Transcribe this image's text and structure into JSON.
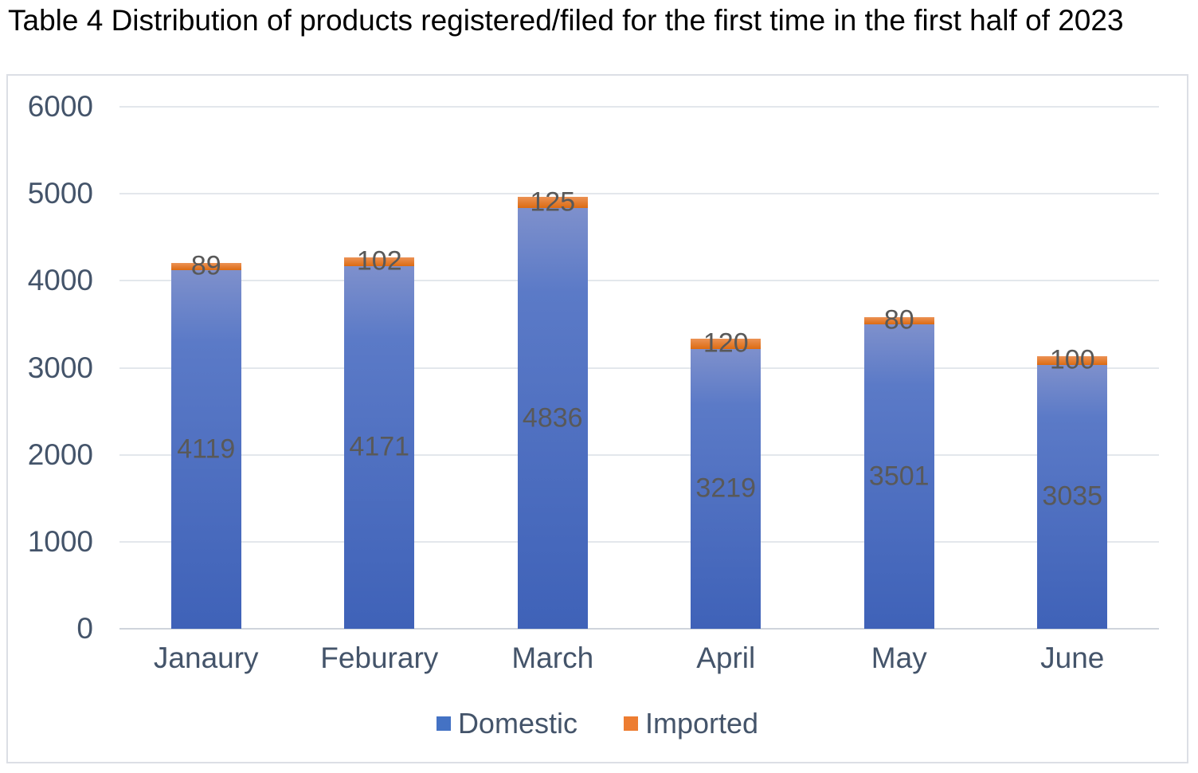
{
  "chart_data": {
    "type": "bar",
    "stacked": true,
    "title": "Table 4 Distribution of products registered/filed for the first time in the first half of 2023",
    "categories": [
      "Janaury",
      "Feburary",
      "March",
      "April",
      "May",
      "June"
    ],
    "series": [
      {
        "name": "Domestic",
        "color": "#4472C4",
        "values": [
          4119,
          4171,
          4836,
          3219,
          3501,
          3035
        ]
      },
      {
        "name": "Imported",
        "color": "#ED7D31",
        "values": [
          89,
          102,
          125,
          120,
          80,
          100
        ]
      }
    ],
    "totals": [
      4208,
      4273,
      4961,
      3339,
      3581,
      3135
    ],
    "ylim": [
      0,
      6000
    ],
    "yticks": [
      0,
      1000,
      2000,
      3000,
      4000,
      5000,
      6000
    ],
    "xlabel": "",
    "ylabel": "",
    "grid": true,
    "gridline_color": "#e3e7ec",
    "axis_text_color": "#44546a",
    "data_label_color": "#595959",
    "data_labels": "center",
    "legend_position": "bottom",
    "legend_entries": [
      "Domestic",
      "Imported"
    ]
  }
}
